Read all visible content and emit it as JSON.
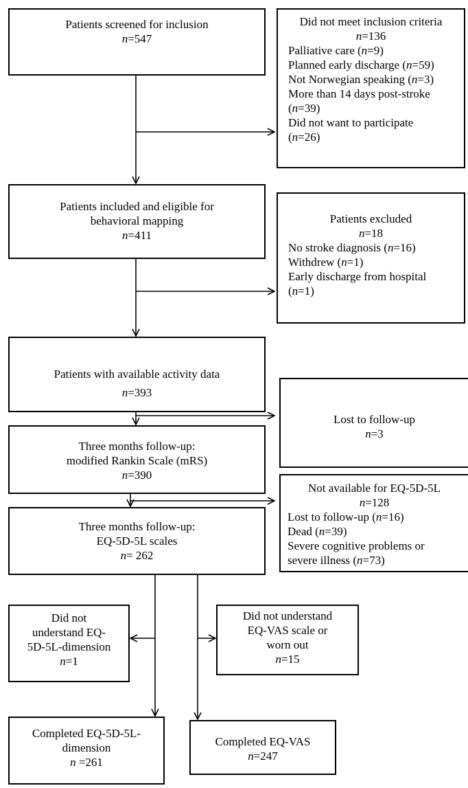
{
  "boxes": {
    "screened": {
      "lines": [
        "Patients screened for inclusion"
      ],
      "n_prefix": "n",
      "n_value": "=547"
    },
    "not_meet": {
      "title": "Did not meet inclusion criteria",
      "n_prefix": "n",
      "n_value": "=136",
      "items": [
        {
          "pre": "Palliative care (",
          "n": "n",
          "post": "=9)"
        },
        {
          "pre": "Planned early discharge (",
          "n": "n",
          "post": "=59)"
        },
        {
          "pre": "Not Norwegian speaking (",
          "n": "n",
          "post": "=3)"
        },
        {
          "pre": "More than 14 days post-stroke",
          "n": "",
          "post": ""
        },
        {
          "pre": "(",
          "n": "n",
          "post": "=39)"
        },
        {
          "pre": "Did not want to participate",
          "n": "",
          "post": ""
        },
        {
          "pre": "(",
          "n": "n",
          "post": "=26)"
        }
      ]
    },
    "included": {
      "lines": [
        "Patients included and eligible for",
        "behavioral mapping"
      ],
      "n_prefix": "n",
      "n_value": "=411"
    },
    "excluded": {
      "title": "Patients excluded",
      "n_prefix": "n",
      "n_value": "=18",
      "items": [
        {
          "pre": "No stroke diagnosis (",
          "n": "n",
          "post": "=16)"
        },
        {
          "pre": "Withdrew (",
          "n": "n",
          "post": "=1)"
        },
        {
          "pre": "Early discharge from hospital",
          "n": "",
          "post": ""
        },
        {
          "pre": "(",
          "n": "n",
          "post": "=1)"
        }
      ]
    },
    "activity": {
      "lines": [
        "Patients with available activity data"
      ],
      "n_prefix": "n",
      "n_value": "=393"
    },
    "lost1": {
      "lines": [
        "Lost to follow-up"
      ],
      "n_prefix": "n",
      "n_value": "=3"
    },
    "mrs": {
      "lines": [
        "Three months follow-up:",
        "modified Rankin Scale (mRS)"
      ],
      "n_prefix": "n",
      "n_value": "=390"
    },
    "not_avail": {
      "title": "Not available for EQ-5D-5L",
      "n_prefix": "n",
      "n_value": "=128",
      "items": [
        {
          "pre": "Lost to follow-up (",
          "n": "n",
          "post": "=16)"
        },
        {
          "pre": "Dead (",
          "n": "n",
          "post": "=39)"
        },
        {
          "pre": "Severe cognitive problems or",
          "n": "",
          "post": ""
        },
        {
          "pre": "severe illness (",
          "n": "n",
          "post": "=73)"
        }
      ]
    },
    "eq": {
      "lines": [
        "Three months follow-up:",
        "EQ-5D-5L scales"
      ],
      "n_prefix": "n",
      "n_value": "= 262"
    },
    "no_dim": {
      "lines": [
        "Did not",
        "understand EQ-",
        "5D-5L-dimension"
      ],
      "n_prefix": "n",
      "n_value": "=1"
    },
    "no_vas": {
      "lines": [
        "Did not understand",
        "EQ-VAS scale or",
        "worn out"
      ],
      "n_prefix": "n",
      "n_value": "=15"
    },
    "comp_dim": {
      "lines": [
        "Completed EQ-5D-5L-",
        "dimension"
      ],
      "n_prefix": "n",
      "n_value": " =261"
    },
    "comp_vas": {
      "lines": [
        "Completed EQ-VAS"
      ],
      "n_prefix": "n",
      "n_value": "=247"
    }
  }
}
